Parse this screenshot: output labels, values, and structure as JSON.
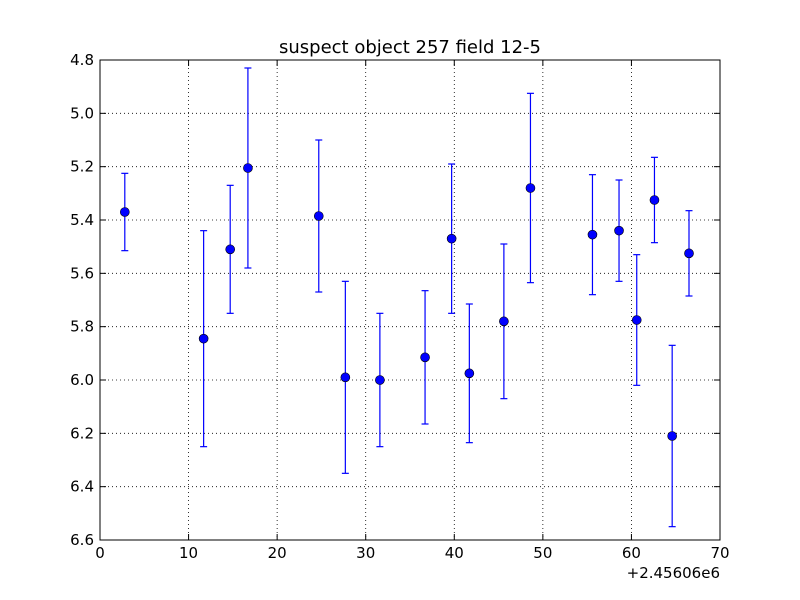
{
  "chart_data": {
    "type": "scatter",
    "title": "suspect object 257 field 12-5",
    "xlabel": "",
    "ylabel": "",
    "x_offset_label": "+2.45606e6",
    "xlim": [
      0,
      70
    ],
    "ylim": [
      6.6,
      4.8
    ],
    "y_inverted": true,
    "grid": true,
    "x_ticks": [
      "0",
      "10",
      "20",
      "30",
      "40",
      "50",
      "60",
      "70"
    ],
    "y_ticks": [
      "4.8",
      "5.0",
      "5.2",
      "5.4",
      "5.6",
      "5.8",
      "6.0",
      "6.2",
      "6.4",
      "6.6"
    ],
    "marker_color": "#0000ff",
    "series": [
      {
        "points": [
          {
            "x": 2.8,
            "y": 5.37,
            "err": 0.145
          },
          {
            "x": 11.7,
            "y": 5.845,
            "err": 0.405
          },
          {
            "x": 14.7,
            "y": 5.51,
            "err": 0.24
          },
          {
            "x": 16.7,
            "y": 5.205,
            "err": 0.375
          },
          {
            "x": 24.7,
            "y": 5.385,
            "err": 0.285
          },
          {
            "x": 27.7,
            "y": 5.99,
            "err": 0.36
          },
          {
            "x": 31.6,
            "y": 6.0,
            "err": 0.25
          },
          {
            "x": 36.7,
            "y": 5.915,
            "err": 0.25
          },
          {
            "x": 39.7,
            "y": 5.47,
            "err": 0.28
          },
          {
            "x": 41.7,
            "y": 5.975,
            "err": 0.26
          },
          {
            "x": 45.6,
            "y": 5.78,
            "err": 0.29
          },
          {
            "x": 48.6,
            "y": 5.28,
            "err": 0.355
          },
          {
            "x": 55.6,
            "y": 5.455,
            "err": 0.225
          },
          {
            "x": 58.6,
            "y": 5.44,
            "err": 0.19
          },
          {
            "x": 60.6,
            "y": 5.775,
            "err": 0.245
          },
          {
            "x": 62.6,
            "y": 5.325,
            "err": 0.16
          },
          {
            "x": 64.6,
            "y": 6.21,
            "err": 0.34
          },
          {
            "x": 66.5,
            "y": 5.525,
            "err": 0.16
          }
        ]
      }
    ]
  }
}
